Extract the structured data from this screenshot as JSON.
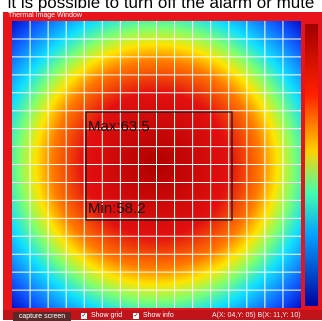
{
  "header": {
    "caption": "it is possible to turn off the alarm or mute",
    "window_title": "Thermal Image Window"
  },
  "overlay": {
    "max": "Max:63.5",
    "min": "Min:58.2"
  },
  "controls": {
    "button": "capture screen",
    "show_grid": "Show grid",
    "show_info": "Show info",
    "coords": "A(X: 04,Y: 05) B(X: 11,Y: 10)"
  }
}
